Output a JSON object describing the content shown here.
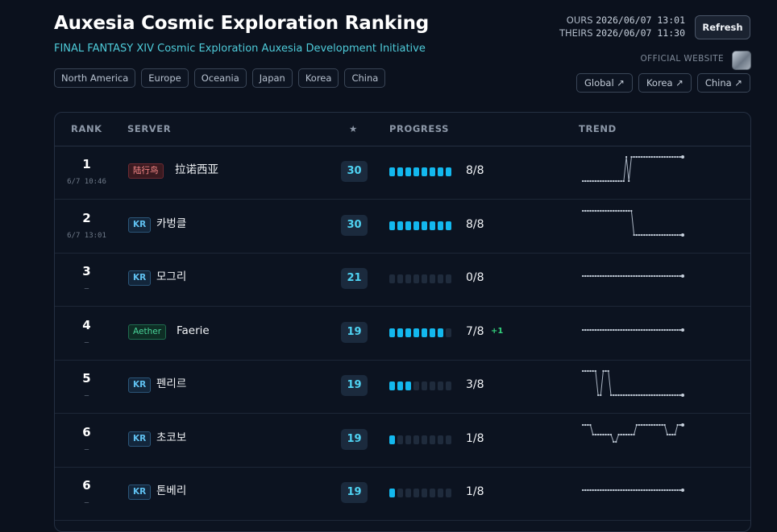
{
  "header": {
    "title": "Auxesia Cosmic Exploration Ranking",
    "subtitle": "FINAL FANTASY XIV Cosmic Exploration Auxesia Development Initiative",
    "regions": [
      "North America",
      "Europe",
      "Oceania",
      "Japan",
      "Korea",
      "China"
    ],
    "ours_label": "OURS",
    "ours_time": "2026/06/07 13:01",
    "theirs_label": "THEIRS",
    "theirs_time": "2026/06/07 11:30",
    "refresh_label": "Refresh",
    "official_label": "OFFICIAL WEBSITE",
    "official_links": [
      "Global ↗",
      "Korea ↗",
      "China ↗"
    ]
  },
  "table": {
    "columns": {
      "rank": "RANK",
      "server": "SERVER",
      "star": "★",
      "progress": "PROGRESS",
      "trend": "TREND"
    },
    "segments_total": 8,
    "rows": [
      {
        "rank": "1",
        "sub": "6/7 10:46",
        "tag": "陆行鸟",
        "tag_type": "cn",
        "server": "拉诺西亚",
        "stars": "30",
        "progress": 8,
        "progress_text": "8/8",
        "delta": "",
        "trend": [
          0,
          0,
          0,
          0,
          0,
          0,
          0,
          0,
          0,
          0,
          0,
          0,
          0,
          0,
          0,
          0,
          0,
          1,
          0,
          1,
          1,
          1,
          1,
          1,
          1,
          1,
          1,
          1,
          1,
          1,
          1,
          1,
          1,
          1,
          1,
          1,
          1,
          1,
          1,
          1
        ]
      },
      {
        "rank": "2",
        "sub": "6/7 13:01",
        "tag": "KR",
        "tag_type": "kr",
        "server": "카벙클",
        "stars": "30",
        "progress": 8,
        "progress_text": "8/8",
        "delta": "",
        "trend": [
          1,
          1,
          1,
          1,
          1,
          1,
          1,
          1,
          1,
          1,
          1,
          1,
          1,
          1,
          1,
          1,
          1,
          1,
          1,
          1,
          0,
          0,
          0,
          0,
          0,
          0,
          0,
          0,
          0,
          0,
          0,
          0,
          0,
          0,
          0,
          0,
          0,
          0,
          0,
          0
        ]
      },
      {
        "rank": "3",
        "sub": "—",
        "tag": "KR",
        "tag_type": "kr",
        "server": "모그리",
        "stars": "21",
        "progress": 0,
        "progress_text": "0/8",
        "delta": "",
        "trend": [
          0.5,
          0.5,
          0.5,
          0.5,
          0.5,
          0.5,
          0.5,
          0.5,
          0.5,
          0.5,
          0.5,
          0.5,
          0.5,
          0.5,
          0.5,
          0.5,
          0.5,
          0.5,
          0.5,
          0.5,
          0.5,
          0.5,
          0.5,
          0.5,
          0.5,
          0.5,
          0.5,
          0.5,
          0.5,
          0.5,
          0.5,
          0.5,
          0.5,
          0.5,
          0.5,
          0.5,
          0.5,
          0.5,
          0.5,
          0.5
        ]
      },
      {
        "rank": "4",
        "sub": "—",
        "tag": "Aether",
        "tag_type": "ae",
        "server": "Faerie",
        "stars": "19",
        "progress": 7,
        "progress_text": "7/8",
        "delta": "+1",
        "trend": [
          0.5,
          0.5,
          0.5,
          0.5,
          0.5,
          0.5,
          0.5,
          0.5,
          0.5,
          0.5,
          0.5,
          0.5,
          0.5,
          0.5,
          0.5,
          0.5,
          0.5,
          0.5,
          0.5,
          0.5,
          0.5,
          0.5,
          0.5,
          0.5,
          0.5,
          0.5,
          0.5,
          0.5,
          0.5,
          0.5,
          0.5,
          0.5,
          0.5,
          0.5,
          0.5,
          0.5,
          0.5,
          0.5,
          0.5,
          0.5
        ]
      },
      {
        "rank": "5",
        "sub": "—",
        "tag": "KR",
        "tag_type": "kr",
        "server": "펜리르",
        "stars": "19",
        "progress": 3,
        "progress_text": "3/8",
        "delta": "",
        "trend": [
          1,
          1,
          1,
          1,
          1,
          1,
          0,
          0,
          1,
          1,
          1,
          0,
          0,
          0,
          0,
          0,
          0,
          0,
          0,
          0,
          0,
          0,
          0,
          0,
          0,
          0,
          0,
          0,
          0,
          0,
          0,
          0,
          0,
          0,
          0,
          0,
          0,
          0,
          0,
          0
        ]
      },
      {
        "rank": "6",
        "sub": "—",
        "tag": "KR",
        "tag_type": "kr",
        "server": "초코보",
        "stars": "19",
        "progress": 1,
        "progress_text": "1/8",
        "delta": "",
        "trend": [
          1,
          1,
          1,
          1,
          0.6,
          0.6,
          0.6,
          0.6,
          0.6,
          0.6,
          0.6,
          0.6,
          0.3,
          0.3,
          0.6,
          0.6,
          0.6,
          0.6,
          0.6,
          0.6,
          0.6,
          1,
          1,
          1,
          1,
          1,
          1,
          1,
          1,
          1,
          1,
          1,
          1,
          0.6,
          0.6,
          0.6,
          0.6,
          1,
          1,
          1
        ]
      },
      {
        "rank": "6",
        "sub": "—",
        "tag": "KR",
        "tag_type": "kr",
        "server": "톤베리",
        "stars": "19",
        "progress": 1,
        "progress_text": "1/8",
        "delta": "",
        "trend": [
          0.5,
          0.5,
          0.5,
          0.5,
          0.5,
          0.5,
          0.5,
          0.5,
          0.5,
          0.5,
          0.5,
          0.5,
          0.5,
          0.5,
          0.5,
          0.5,
          0.5,
          0.5,
          0.5,
          0.5,
          0.5,
          0.5,
          0.5,
          0.5,
          0.5,
          0.5,
          0.5,
          0.5,
          0.5,
          0.5,
          0.5,
          0.5,
          0.5,
          0.5,
          0.5,
          0.5,
          0.5,
          0.5,
          0.5,
          0.5
        ]
      }
    ]
  }
}
